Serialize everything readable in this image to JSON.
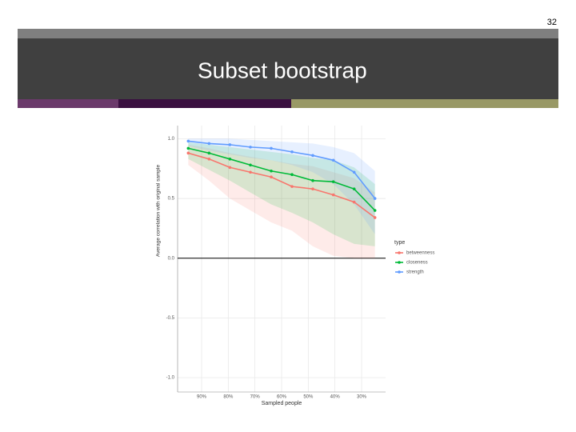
{
  "slide_number": "32",
  "title": "Subset bootstrap",
  "chart_data": {
    "type": "line",
    "xlabel": "Sampled people",
    "ylabel": "Average correlation with original sample",
    "x": [
      95,
      87.2,
      79.4,
      71.7,
      63.9,
      56.1,
      48.3,
      40.6,
      32.8,
      25
    ],
    "xlim": [
      99,
      21
    ],
    "xticks": [
      {
        "value": 90,
        "label": "90%"
      },
      {
        "value": 80,
        "label": "80%"
      },
      {
        "value": 70,
        "label": "70%"
      },
      {
        "value": 60,
        "label": "60%"
      },
      {
        "value": 50,
        "label": "50%"
      },
      {
        "value": 40,
        "label": "40%"
      },
      {
        "value": 30,
        "label": "30%"
      }
    ],
    "ylim": [
      -1.12,
      1.11
    ],
    "yticks": [
      {
        "value": -1,
        "label": "-1.0"
      },
      {
        "value": -0.5,
        "label": "-0.5"
      },
      {
        "value": 0,
        "label": "0.0"
      },
      {
        "value": 0.5,
        "label": "0.5"
      },
      {
        "value": 1,
        "label": "1.0"
      }
    ],
    "hline": 0,
    "grid": true,
    "legend_title": "type",
    "legend": "right",
    "series": [
      {
        "name": "betweenness",
        "color": "#f8766d",
        "values": [
          0.88,
          0.83,
          0.76,
          0.72,
          0.68,
          0.6,
          0.58,
          0.53,
          0.47,
          0.34
        ],
        "upper": [
          0.95,
          0.92,
          0.88,
          0.85,
          0.82,
          0.79,
          0.77,
          0.72,
          0.67,
          0.55
        ],
        "lower": [
          0.78,
          0.65,
          0.5,
          0.4,
          0.3,
          0.23,
          0.1,
          0.02,
          0,
          0
        ]
      },
      {
        "name": "closeness",
        "color": "#00ba38",
        "values": [
          0.92,
          0.88,
          0.83,
          0.78,
          0.73,
          0.7,
          0.65,
          0.64,
          0.58,
          0.4
        ],
        "upper": [
          0.97,
          0.95,
          0.93,
          0.91,
          0.89,
          0.87,
          0.84,
          0.82,
          0.76,
          0.62
        ],
        "lower": [
          0.83,
          0.74,
          0.65,
          0.55,
          0.45,
          0.38,
          0.3,
          0.2,
          0.12,
          0.1
        ]
      },
      {
        "name": "strength",
        "color": "#619cff",
        "values": [
          0.98,
          0.96,
          0.95,
          0.93,
          0.92,
          0.89,
          0.86,
          0.82,
          0.72,
          0.5
        ],
        "upper": [
          1,
          1,
          1,
          0.99,
          0.98,
          0.97,
          0.96,
          0.93,
          0.88,
          0.73
        ],
        "lower": [
          0.94,
          0.9,
          0.87,
          0.84,
          0.82,
          0.78,
          0.72,
          0.62,
          0.45,
          0.2
        ]
      }
    ]
  }
}
